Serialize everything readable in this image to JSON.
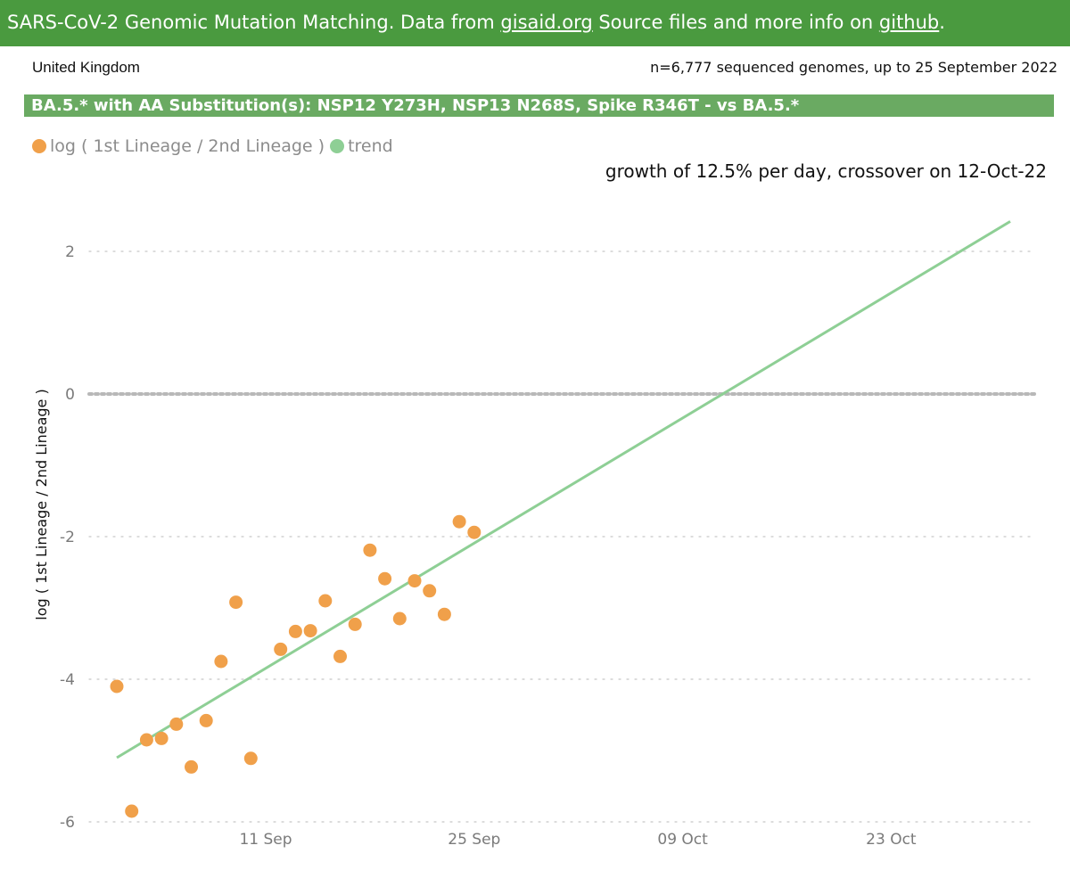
{
  "header": {
    "prefix": "SARS-CoV-2 Genomic Mutation Matching. Data from ",
    "link1": "gisaid.org",
    "middle": " Source files and more info on ",
    "link2": "github",
    "suffix": "."
  },
  "country": "United Kingdom",
  "sample_info": "n=6,777 sequenced genomes, up to 25 September 2022",
  "comparison_title": "BA.5.* with AA Substitution(s): NSP12 Y273H, NSP13 N268S, Spike R346T - vs BA.5.*",
  "legend": {
    "series1": "log ( 1st Lineage / 2nd Lineage )",
    "series2": "trend"
  },
  "growth_text": "growth of 12.5% per day, crossover on 12-Oct-22",
  "colors": {
    "header_bg": "#4a9a3f",
    "title_bg": "#6aaa62",
    "points": "#f0a04a",
    "trend": "#8ecf95",
    "zero_line": "#b8b8b8"
  },
  "chart_data": {
    "type": "scatter",
    "ylabel": "log ( 1st Lineage / 2nd Lineage )",
    "xlabel": "",
    "xlim": [
      "2022-08-29",
      "2022-11-01"
    ],
    "ylim": [
      -6,
      2.5
    ],
    "y_ticks": [
      2,
      0,
      -2,
      -4,
      -6
    ],
    "x_ticks": [
      {
        "date": "2022-09-11",
        "label": "11 Sep"
      },
      {
        "date": "2022-09-25",
        "label": "25 Sep"
      },
      {
        "date": "2022-10-09",
        "label": "09 Oct"
      },
      {
        "date": "2022-10-23",
        "label": "23 Oct"
      }
    ],
    "grid": true,
    "reference_line_y": 0,
    "series": [
      {
        "name": "log ( 1st Lineage / 2nd Lineage )",
        "points": [
          {
            "x": "2022-09-01",
            "y": -4.1
          },
          {
            "x": "2022-09-02",
            "y": -5.85
          },
          {
            "x": "2022-09-03",
            "y": -4.85
          },
          {
            "x": "2022-09-04",
            "y": -4.83
          },
          {
            "x": "2022-09-05",
            "y": -4.63
          },
          {
            "x": "2022-09-06",
            "y": -5.23
          },
          {
            "x": "2022-09-07",
            "y": -4.58
          },
          {
            "x": "2022-09-08",
            "y": -3.75
          },
          {
            "x": "2022-09-09",
            "y": -2.92
          },
          {
            "x": "2022-09-10",
            "y": -5.11
          },
          {
            "x": "2022-09-12",
            "y": -3.58
          },
          {
            "x": "2022-09-13",
            "y": -3.33
          },
          {
            "x": "2022-09-14",
            "y": -3.32
          },
          {
            "x": "2022-09-15",
            "y": -2.9
          },
          {
            "x": "2022-09-16",
            "y": -3.68
          },
          {
            "x": "2022-09-17",
            "y": -3.23
          },
          {
            "x": "2022-09-18",
            "y": -2.19
          },
          {
            "x": "2022-09-19",
            "y": -2.59
          },
          {
            "x": "2022-09-20",
            "y": -3.15
          },
          {
            "x": "2022-09-21",
            "y": -2.62
          },
          {
            "x": "2022-09-22",
            "y": -2.76
          },
          {
            "x": "2022-09-23",
            "y": -3.09
          },
          {
            "x": "2022-09-24",
            "y": -1.79
          },
          {
            "x": "2022-09-25",
            "y": -1.94
          }
        ]
      },
      {
        "name": "trend",
        "line": [
          {
            "x": "2022-09-01",
            "y": -5.1
          },
          {
            "x": "2022-10-31",
            "y": 2.42
          }
        ]
      }
    ]
  }
}
